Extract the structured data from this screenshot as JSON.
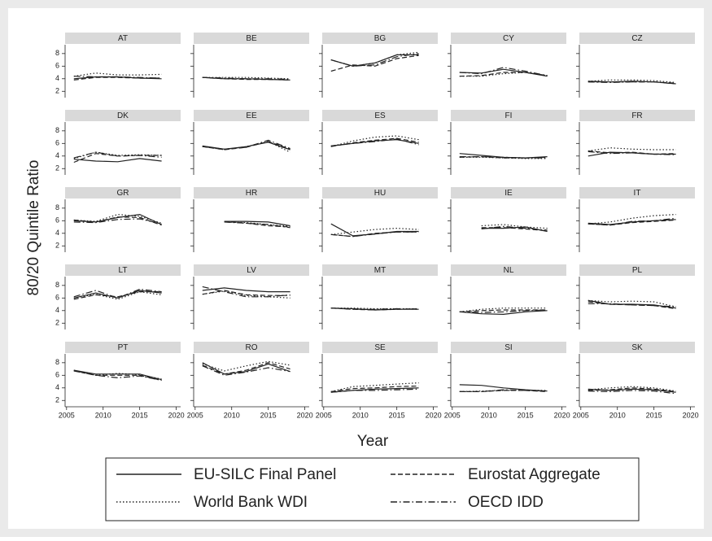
{
  "chart_data": {
    "type": "line",
    "xlabel": "Year",
    "ylabel": "80/20 Quintile Ratio",
    "x": [
      2006,
      2009,
      2012,
      2015,
      2018
    ],
    "xlim": [
      2004.8,
      2020.6
    ],
    "xticks": [
      2005,
      2010,
      2015,
      2020
    ],
    "ylim": [
      1,
      9.4
    ],
    "yticks": [
      2,
      4,
      6,
      8
    ],
    "series": [
      {
        "name": "EU-SILC Final Panel",
        "color": "#222222",
        "style": "solid"
      },
      {
        "name": "Eurostat Aggregate",
        "color": "#222222",
        "style": "dashed"
      },
      {
        "name": "World Bank WDI",
        "color": "#222222",
        "style": "dotted"
      },
      {
        "name": "OECD IDD",
        "color": "#222222",
        "style": "dashdot"
      }
    ],
    "panels": [
      {
        "title": "AT",
        "values": [
          [
            4.0,
            4.3,
            4.3,
            4.1,
            4.0
          ],
          [
            3.8,
            4.2,
            4.2,
            4.1,
            4.1
          ],
          [
            4.4,
            4.9,
            4.6,
            4.6,
            4.7
          ],
          [
            4.4,
            4.3,
            4.3,
            4.2,
            4.1
          ]
        ]
      },
      {
        "title": "BE",
        "values": [
          [
            4.2,
            4.0,
            4.0,
            3.9,
            3.8
          ],
          [
            4.2,
            4.0,
            3.9,
            3.9,
            3.8
          ],
          [
            4.2,
            4.2,
            4.2,
            4.1,
            4.0
          ],
          [
            4.2,
            4.1,
            4.0,
            4.0,
            3.9
          ]
        ]
      },
      {
        "title": "BG",
        "values": [
          [
            7.0,
            6.0,
            6.5,
            7.8,
            7.8
          ],
          [
            5.2,
            6.2,
            6.0,
            7.2,
            7.7
          ],
          [
            7.0,
            6.0,
            6.5,
            7.8,
            8.2
          ],
          [
            7.0,
            6.0,
            6.2,
            7.5,
            8.0
          ]
        ]
      },
      {
        "title": "CY",
        "values": [
          [
            5.0,
            4.9,
            5.5,
            5.0,
            4.4
          ],
          [
            4.4,
            4.5,
            5.0,
            5.0,
            4.5
          ],
          [
            4.4,
            4.4,
            4.8,
            5.0,
            4.5
          ],
          [
            5.0,
            4.8,
            5.8,
            5.2,
            4.5
          ]
        ]
      },
      {
        "title": "CZ",
        "values": [
          [
            3.6,
            3.5,
            3.6,
            3.5,
            3.2
          ],
          [
            3.5,
            3.5,
            3.5,
            3.5,
            3.3
          ],
          [
            3.6,
            3.8,
            3.8,
            3.7,
            3.4
          ],
          [
            3.5,
            3.4,
            3.5,
            3.5,
            3.2
          ]
        ]
      },
      {
        "title": "DK",
        "values": [
          [
            3.5,
            3.2,
            3.1,
            3.6,
            3.2
          ],
          [
            3.0,
            4.4,
            4.0,
            4.1,
            4.1
          ],
          [
            3.6,
            4.6,
            4.1,
            4.2,
            4.1
          ],
          [
            3.7,
            4.6,
            4.0,
            4.1,
            3.8
          ]
        ]
      },
      {
        "title": "EE",
        "values": [
          [
            5.6,
            5.1,
            5.5,
            6.2,
            5.0
          ],
          [
            5.5,
            5.0,
            5.4,
            6.3,
            5.1
          ],
          [
            5.5,
            5.0,
            5.5,
            6.3,
            4.6
          ],
          [
            5.5,
            5.1,
            5.4,
            6.5,
            5.2
          ]
        ]
      },
      {
        "title": "ES",
        "values": [
          [
            5.6,
            6.0,
            6.4,
            6.6,
            6.0
          ],
          [
            5.5,
            6.1,
            6.5,
            6.8,
            6.2
          ],
          [
            5.5,
            6.4,
            7.0,
            7.2,
            6.6
          ],
          [
            5.6,
            6.0,
            6.3,
            6.7,
            5.8
          ]
        ]
      },
      {
        "title": "FI",
        "values": [
          [
            4.4,
            4.1,
            3.8,
            3.7,
            3.9
          ],
          [
            3.8,
            3.9,
            3.7,
            3.7,
            3.8
          ],
          [
            3.8,
            3.8,
            3.7,
            3.6,
            3.6
          ],
          [
            3.9,
            3.9,
            3.8,
            3.7,
            3.7
          ]
        ]
      },
      {
        "title": "FR",
        "values": [
          [
            4.0,
            4.6,
            4.5,
            4.3,
            4.3
          ],
          [
            4.8,
            4.5,
            4.6,
            4.3,
            4.4
          ],
          [
            4.8,
            5.3,
            5.1,
            5.0,
            5.0
          ],
          [
            4.7,
            4.4,
            4.5,
            4.3,
            4.2
          ]
        ]
      },
      {
        "title": "GR",
        "values": [
          [
            6.0,
            5.8,
            6.5,
            7.0,
            5.4
          ],
          [
            6.1,
            5.8,
            6.6,
            6.5,
            5.3
          ],
          [
            6.1,
            5.9,
            7.0,
            6.7,
            5.6
          ],
          [
            5.8,
            5.7,
            6.2,
            6.3,
            5.5
          ]
        ]
      },
      {
        "title": "HR",
        "values": [
          [
            null,
            5.9,
            5.9,
            5.8,
            5.2
          ],
          [
            null,
            5.9,
            5.6,
            5.2,
            5.0
          ],
          [
            null,
            5.8,
            5.7,
            5.4,
            5.1
          ],
          [
            null,
            5.8,
            5.6,
            5.4,
            4.9
          ]
        ]
      },
      {
        "title": "HU",
        "values": [
          [
            5.5,
            3.6,
            3.9,
            4.3,
            4.3
          ],
          [
            3.8,
            3.5,
            4.0,
            4.2,
            4.2
          ],
          [
            3.8,
            4.2,
            4.6,
            4.8,
            4.6
          ],
          [
            3.8,
            3.5,
            3.9,
            4.2,
            4.2
          ]
        ]
      },
      {
        "title": "IE",
        "values": [
          [
            null,
            4.8,
            4.8,
            5.0,
            4.3
          ],
          [
            null,
            4.9,
            4.9,
            4.7,
            4.4
          ],
          [
            null,
            5.2,
            5.4,
            5.0,
            4.8
          ],
          [
            null,
            4.7,
            5.1,
            4.8,
            4.5
          ]
        ]
      },
      {
        "title": "IT",
        "values": [
          [
            5.6,
            5.4,
            5.8,
            6.0,
            6.2
          ],
          [
            5.5,
            5.3,
            5.7,
            5.9,
            6.1
          ],
          [
            5.5,
            5.8,
            6.4,
            6.8,
            7.0
          ],
          [
            5.5,
            5.3,
            5.9,
            6.0,
            6.4
          ]
        ]
      },
      {
        "title": "LT",
        "values": [
          [
            6.0,
            6.8,
            6.0,
            7.2,
            6.8
          ],
          [
            5.8,
            6.5,
            6.2,
            7.0,
            7.0
          ],
          [
            6.0,
            6.6,
            5.8,
            7.0,
            6.5
          ],
          [
            6.2,
            7.2,
            6.0,
            7.4,
            7.0
          ]
        ]
      },
      {
        "title": "LV",
        "values": [
          [
            7.2,
            7.6,
            7.2,
            7.0,
            7.0
          ],
          [
            6.6,
            7.2,
            6.5,
            6.4,
            6.4
          ],
          [
            6.6,
            7.1,
            6.4,
            6.2,
            6.0
          ],
          [
            7.8,
            7.0,
            6.2,
            6.2,
            6.5
          ]
        ]
      },
      {
        "title": "MT",
        "values": [
          [
            4.4,
            4.3,
            4.1,
            4.2,
            4.2
          ],
          [
            4.4,
            4.2,
            4.1,
            4.2,
            4.3
          ],
          [
            4.4,
            4.4,
            4.3,
            4.3,
            4.3
          ],
          [
            4.4,
            4.2,
            4.2,
            4.3,
            4.2
          ]
        ]
      },
      {
        "title": "NL",
        "values": [
          [
            3.8,
            3.5,
            3.4,
            3.8,
            4.0
          ],
          [
            3.8,
            4.0,
            4.1,
            4.1,
            4.1
          ],
          [
            3.8,
            4.2,
            4.4,
            4.4,
            4.4
          ],
          [
            3.8,
            3.7,
            3.8,
            4.0,
            4.1
          ]
        ]
      },
      {
        "title": "PL",
        "values": [
          [
            5.6,
            5.0,
            5.0,
            4.9,
            4.4
          ],
          [
            5.4,
            5.0,
            4.9,
            4.8,
            4.3
          ],
          [
            5.6,
            5.4,
            5.5,
            5.4,
            4.6
          ],
          [
            5.1,
            5.1,
            4.9,
            4.8,
            4.6
          ]
        ]
      },
      {
        "title": "PT",
        "values": [
          [
            6.8,
            6.2,
            6.2,
            6.2,
            5.3
          ],
          [
            6.7,
            6.0,
            6.0,
            6.0,
            5.2
          ],
          [
            6.8,
            6.0,
            6.3,
            6.1,
            5.4
          ],
          [
            6.7,
            6.0,
            5.6,
            5.9,
            5.2
          ]
        ]
      },
      {
        "title": "RO",
        "values": [
          [
            8.0,
            6.2,
            6.6,
            7.8,
            6.6
          ],
          [
            7.6,
            6.2,
            6.8,
            8.0,
            7.0
          ],
          [
            7.8,
            6.7,
            7.5,
            8.2,
            7.6
          ],
          [
            7.5,
            6.0,
            6.5,
            7.2,
            6.6
          ]
        ]
      },
      {
        "title": "SE",
        "values": [
          [
            3.3,
            3.6,
            3.8,
            3.9,
            4.0
          ],
          [
            3.4,
            3.9,
            4.0,
            4.2,
            4.3
          ],
          [
            3.4,
            4.2,
            4.4,
            4.6,
            4.8
          ],
          [
            3.3,
            3.6,
            3.6,
            3.7,
            3.8
          ]
        ]
      },
      {
        "title": "SI",
        "values": [
          [
            4.5,
            4.4,
            4.0,
            3.7,
            3.5
          ],
          [
            3.4,
            3.4,
            3.6,
            3.6,
            3.4
          ],
          [
            3.4,
            3.5,
            3.6,
            3.6,
            3.6
          ],
          [
            3.4,
            3.4,
            3.7,
            3.6,
            3.5
          ]
        ]
      },
      {
        "title": "SK",
        "values": [
          [
            3.8,
            3.6,
            3.8,
            3.7,
            3.3
          ],
          [
            3.6,
            3.7,
            4.0,
            3.8,
            3.4
          ],
          [
            3.7,
            4.0,
            4.2,
            4.0,
            3.5
          ],
          [
            3.5,
            3.4,
            3.6,
            3.5,
            3.1
          ]
        ]
      }
    ]
  }
}
